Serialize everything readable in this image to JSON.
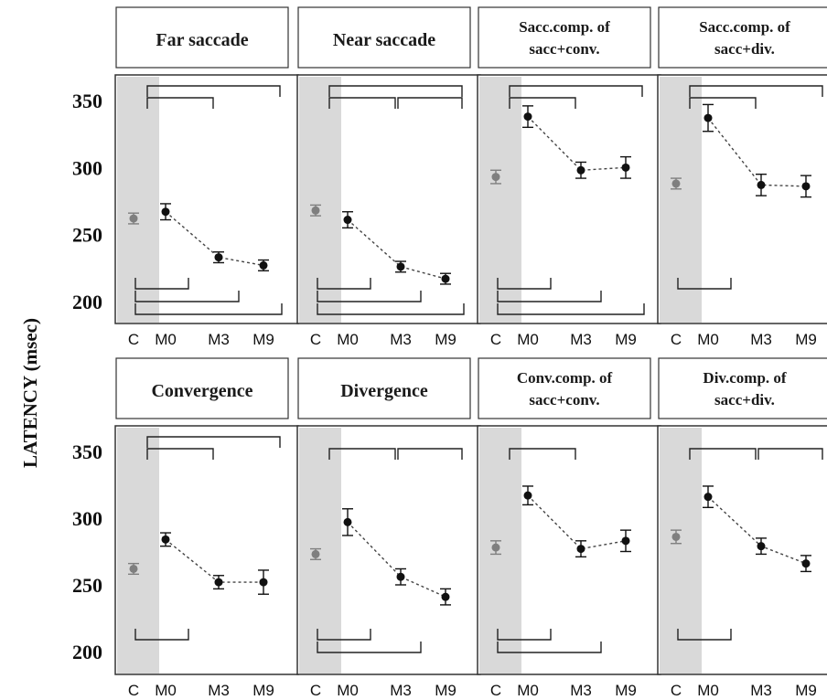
{
  "chart_data": {
    "type": "scatter",
    "y_axis_label": "LATENCY (msec)",
    "y_ticks": [
      350,
      300,
      250,
      200
    ],
    "x_categories": [
      "C",
      "M0",
      "M3",
      "M9"
    ],
    "grid": false,
    "colors": {
      "control": "#7f7f7f",
      "patient": "#111111",
      "control_band": "#d9d9d9"
    },
    "panels": [
      {
        "title_lines": [
          "Far saccade"
        ],
        "ylim": [
          180,
          370
        ],
        "points": [
          {
            "x": "C",
            "y": 262,
            "err": 4,
            "group": "control"
          },
          {
            "x": "M0",
            "y": 267,
            "err": 6,
            "group": "patient"
          },
          {
            "x": "M3",
            "y": 233,
            "err": 4,
            "group": "patient"
          },
          {
            "x": "M9",
            "y": 227,
            "err": 4,
            "group": "patient"
          }
        ],
        "brackets_top": [
          [
            "M0",
            "M9"
          ],
          [
            "M0",
            "M3"
          ]
        ],
        "brackets_bottom": [
          [
            "C",
            "M0"
          ],
          [
            "C",
            "M3"
          ],
          [
            "C",
            "M9"
          ]
        ]
      },
      {
        "title_lines": [
          "Near saccade"
        ],
        "ylim": [
          180,
          370
        ],
        "points": [
          {
            "x": "C",
            "y": 268,
            "err": 4,
            "group": "control"
          },
          {
            "x": "M0",
            "y": 261,
            "err": 6,
            "group": "patient"
          },
          {
            "x": "M3",
            "y": 226,
            "err": 4,
            "group": "patient"
          },
          {
            "x": "M9",
            "y": 217,
            "err": 4,
            "group": "patient"
          }
        ],
        "brackets_top": [
          [
            "M0",
            "M9"
          ],
          [
            "M0",
            "M3"
          ],
          [
            "M3",
            "M9"
          ]
        ],
        "brackets_bottom": [
          [
            "C",
            "M0"
          ],
          [
            "C",
            "M3"
          ],
          [
            "C",
            "M9"
          ]
        ]
      },
      {
        "title_lines": [
          "Sacc.comp. of",
          "sacc+conv."
        ],
        "ylim": [
          180,
          370
        ],
        "points": [
          {
            "x": "C",
            "y": 293,
            "err": 5,
            "group": "control"
          },
          {
            "x": "M0",
            "y": 338,
            "err": 8,
            "group": "patient"
          },
          {
            "x": "M3",
            "y": 298,
            "err": 6,
            "group": "patient"
          },
          {
            "x": "M9",
            "y": 300,
            "err": 8,
            "group": "patient"
          }
        ],
        "brackets_top": [
          [
            "M0",
            "M9"
          ],
          [
            "M0",
            "M3"
          ]
        ],
        "brackets_bottom": [
          [
            "C",
            "M0"
          ],
          [
            "C",
            "M3"
          ],
          [
            "C",
            "M9"
          ]
        ]
      },
      {
        "title_lines": [
          "Sacc.comp. of",
          "sacc+div."
        ],
        "ylim": [
          180,
          370
        ],
        "points": [
          {
            "x": "C",
            "y": 288,
            "err": 4,
            "group": "control"
          },
          {
            "x": "M0",
            "y": 337,
            "err": 10,
            "group": "patient"
          },
          {
            "x": "M3",
            "y": 287,
            "err": 8,
            "group": "patient"
          },
          {
            "x": "M9",
            "y": 286,
            "err": 8,
            "group": "patient"
          }
        ],
        "brackets_top": [
          [
            "M0",
            "M3"
          ],
          [
            "M0",
            "M9"
          ]
        ],
        "brackets_bottom": [
          [
            "C",
            "M0"
          ]
        ]
      },
      {
        "title_lines": [
          "Convergence"
        ],
        "ylim": [
          180,
          370
        ],
        "points": [
          {
            "x": "C",
            "y": 262,
            "err": 4,
            "group": "control"
          },
          {
            "x": "M0",
            "y": 284,
            "err": 5,
            "group": "patient"
          },
          {
            "x": "M3",
            "y": 252,
            "err": 5,
            "group": "patient"
          },
          {
            "x": "M9",
            "y": 252,
            "err": 9,
            "group": "patient"
          }
        ],
        "brackets_top": [
          [
            "M0",
            "M9"
          ],
          [
            "M0",
            "M3"
          ]
        ],
        "brackets_bottom": [
          [
            "C",
            "M0"
          ]
        ]
      },
      {
        "title_lines": [
          "Divergence"
        ],
        "ylim": [
          180,
          370
        ],
        "points": [
          {
            "x": "C",
            "y": 273,
            "err": 4,
            "group": "control"
          },
          {
            "x": "M0",
            "y": 297,
            "err": 10,
            "group": "patient"
          },
          {
            "x": "M3",
            "y": 256,
            "err": 6,
            "group": "patient"
          },
          {
            "x": "M9",
            "y": 241,
            "err": 6,
            "group": "patient"
          }
        ],
        "brackets_top": [
          [
            "M0",
            "M3"
          ],
          [
            "M3",
            "M9"
          ]
        ],
        "brackets_bottom": [
          [
            "C",
            "M0"
          ],
          [
            "C",
            "M3"
          ]
        ]
      },
      {
        "title_lines": [
          "Conv.comp. of",
          "sacc+conv."
        ],
        "ylim": [
          180,
          370
        ],
        "points": [
          {
            "x": "C",
            "y": 278,
            "err": 5,
            "group": "control"
          },
          {
            "x": "M0",
            "y": 317,
            "err": 7,
            "group": "patient"
          },
          {
            "x": "M3",
            "y": 277,
            "err": 6,
            "group": "patient"
          },
          {
            "x": "M9",
            "y": 283,
            "err": 8,
            "group": "patient"
          }
        ],
        "brackets_top": [
          [
            "M0",
            "M3"
          ]
        ],
        "brackets_bottom": [
          [
            "C",
            "M0"
          ],
          [
            "C",
            "M3"
          ]
        ]
      },
      {
        "title_lines": [
          "Div.comp. of",
          "sacc+div."
        ],
        "ylim": [
          180,
          370
        ],
        "points": [
          {
            "x": "C",
            "y": 286,
            "err": 5,
            "group": "control"
          },
          {
            "x": "M0",
            "y": 316,
            "err": 8,
            "group": "patient"
          },
          {
            "x": "M3",
            "y": 279,
            "err": 6,
            "group": "patient"
          },
          {
            "x": "M9",
            "y": 266,
            "err": 6,
            "group": "patient"
          }
        ],
        "brackets_top": [
          [
            "M0",
            "M3"
          ],
          [
            "M3",
            "M9"
          ]
        ],
        "brackets_bottom": [
          [
            "C",
            "M0"
          ]
        ]
      }
    ]
  }
}
